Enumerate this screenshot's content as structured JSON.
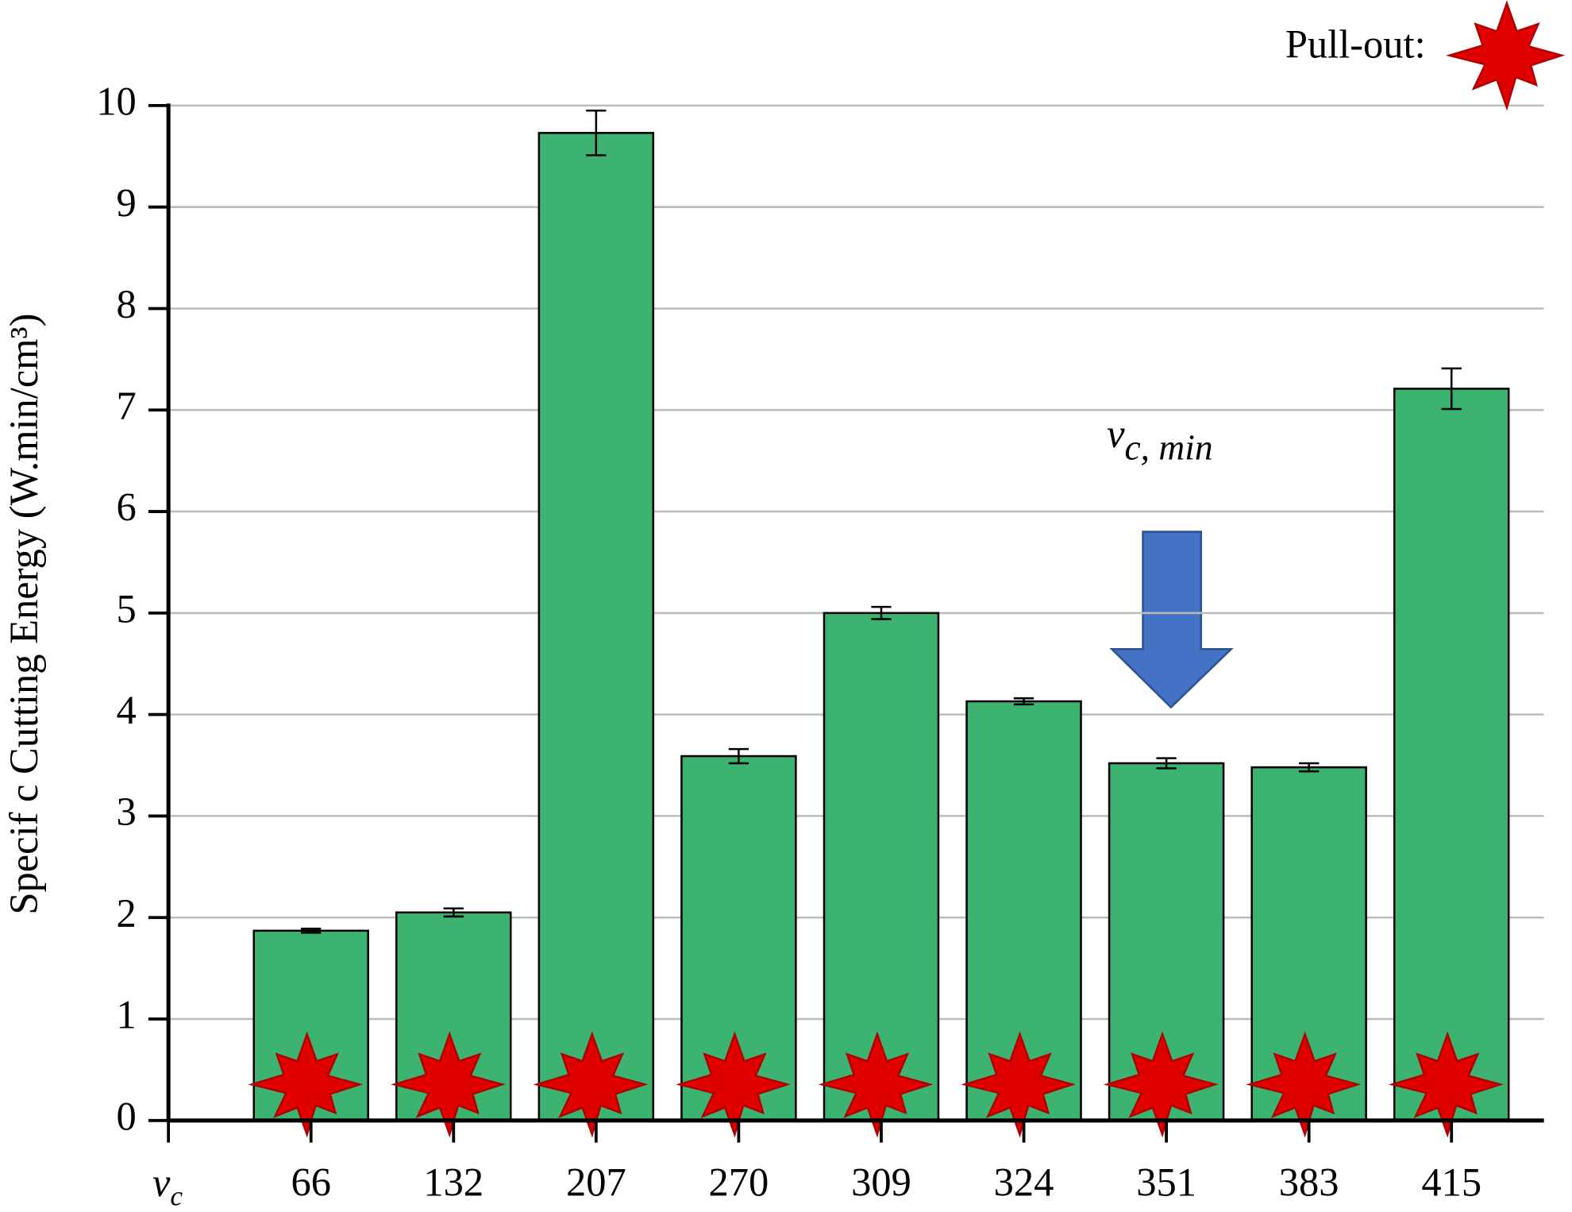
{
  "chart_data": {
    "type": "bar",
    "y_label": "Specif c Cutting Energy (W.min/cm³)",
    "x_label": [
      "v",
      "c"
    ],
    "annotation": [
      "v",
      "c, min"
    ],
    "legend": "Pull-out:",
    "categories": [
      "66",
      "132",
      "207",
      "270",
      "309",
      "324",
      "351",
      "383",
      "415"
    ],
    "values": [
      1.87,
      2.05,
      9.73,
      3.59,
      5.0,
      4.13,
      3.52,
      3.48,
      7.21
    ],
    "errors": [
      0.02,
      0.04,
      0.22,
      0.07,
      0.06,
      0.03,
      0.05,
      0.04,
      0.2
    ],
    "color": "#3cb371",
    "ylim": [
      0,
      10
    ],
    "yticks": [
      0,
      1,
      2,
      3,
      4,
      5,
      6,
      7,
      8,
      9,
      10
    ],
    "grid": true
  }
}
